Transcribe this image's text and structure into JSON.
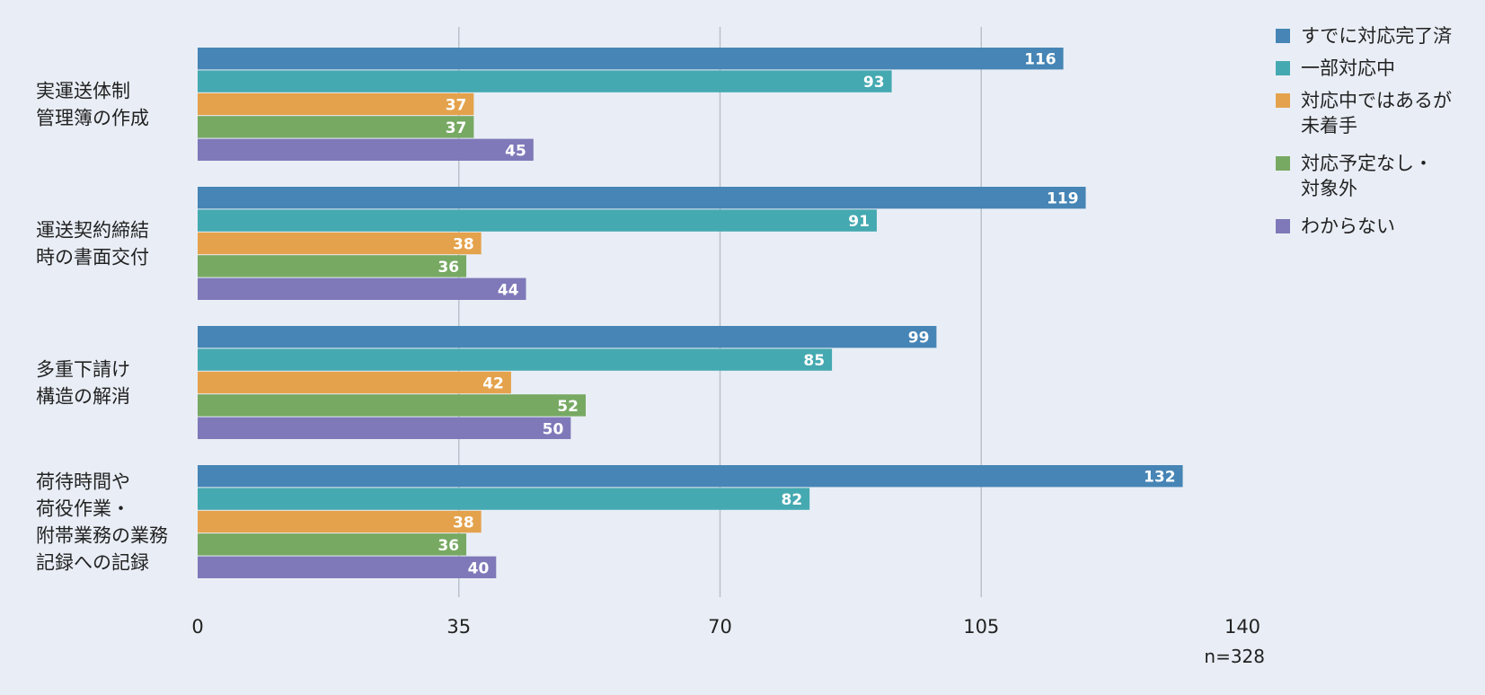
{
  "chart_data": {
    "type": "bar",
    "orientation": "horizontal",
    "categories": [
      [
        "実運送体制",
        "管理簿の作成"
      ],
      [
        "運送契約締結",
        "時の書面交付"
      ],
      [
        "多重下請け",
        "構造の解消"
      ],
      [
        "荷待時間や",
        "荷役作業・",
        "附帯業務の業務",
        "記録への記録"
      ]
    ],
    "series": [
      {
        "name": [
          "すでに対応完了済"
        ],
        "color": "#4685b5",
        "values": [
          116,
          119,
          99,
          132
        ]
      },
      {
        "name": [
          "一部対応中"
        ],
        "color": "#45a9b1",
        "values": [
          93,
          91,
          85,
          82
        ]
      },
      {
        "name": [
          "対応中ではあるが",
          "未着手"
        ],
        "color": "#e4a24c",
        "values": [
          37,
          38,
          42,
          38
        ]
      },
      {
        "name": [
          "対応予定なし・",
          "対象外"
        ],
        "color": "#77a963",
        "values": [
          37,
          36,
          52,
          36
        ]
      },
      {
        "name": [
          "わからない"
        ],
        "color": "#7f79b9",
        "values": [
          45,
          44,
          50,
          40
        ]
      }
    ],
    "xlim": [
      0,
      140
    ],
    "xticks": [
      0,
      35,
      70,
      105,
      140
    ],
    "grid": true,
    "legend_position": "top-right",
    "note": "n=328"
  }
}
